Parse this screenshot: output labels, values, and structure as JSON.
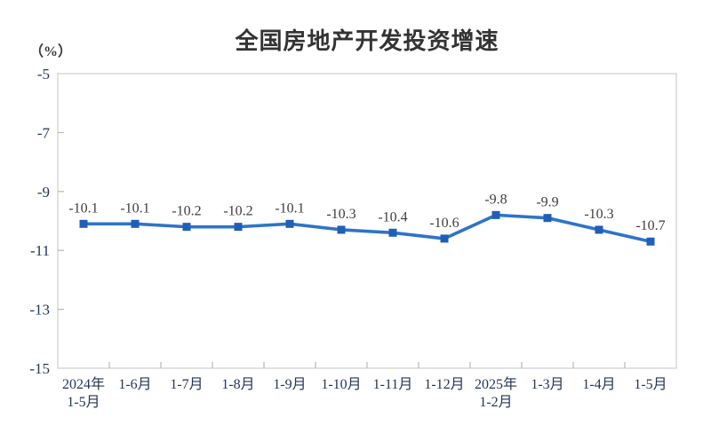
{
  "chart_data": {
    "type": "line",
    "title": "全国房地产开发投资增速",
    "unit_label": "（%）",
    "categories": [
      "2024年\n1-5月",
      "1-6月",
      "1-7月",
      "1-8月",
      "1-9月",
      "1-10月",
      "1-11月",
      "1-12月",
      "2025年\n1-2月",
      "1-3月",
      "1-4月",
      "1-5月"
    ],
    "values": [
      -10.1,
      -10.1,
      -10.2,
      -10.2,
      -10.1,
      -10.3,
      -10.4,
      -10.6,
      -9.8,
      -9.9,
      -10.3,
      -10.7
    ],
    "data_labels": [
      "-10.1",
      "-10.1",
      "-10.2",
      "-10.2",
      "-10.1",
      "-10.3",
      "-10.4",
      "-10.6",
      "-9.8",
      "-9.9",
      "-10.3",
      "-10.7"
    ],
    "xlabel": "",
    "ylabel": "（%）",
    "ylim": [
      -15,
      -5
    ],
    "yticks": [
      -5,
      -7,
      -9,
      -11,
      -13,
      -15
    ],
    "grid": false,
    "legend_position": "none",
    "colors": {
      "line": "#2e74c8",
      "marker": "#1f5fb8",
      "plot_border": "#d2d2d2",
      "tick": "#b8b8b8",
      "axis_text": "#25355e",
      "data_label_text": "#3d3d3d",
      "title_text": "#333333"
    }
  }
}
